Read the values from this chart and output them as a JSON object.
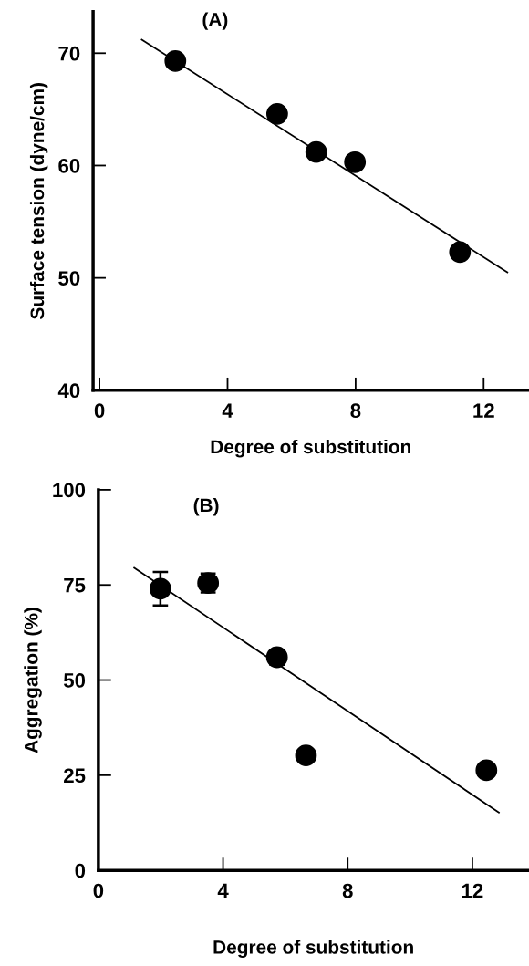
{
  "chart_data": [
    {
      "type": "scatter",
      "xlabel": "Degree of substitution",
      "ylabel": "Surface tension (dyne/cm)",
      "annotations": [
        "(A)"
      ],
      "xlim": [
        -0.2,
        13.4
      ],
      "ylim": [
        40,
        73.7
      ],
      "xticks": [
        0,
        4,
        8,
        12
      ],
      "yticks": [
        40,
        50,
        60,
        70
      ],
      "grid": false,
      "series": [
        {
          "marker": "circle",
          "color": "#000000",
          "x": [
            2.37,
            5.55,
            6.77,
            7.98,
            11.26
          ],
          "values": [
            69.3,
            64.6,
            61.2,
            60.3,
            52.3
          ]
        },
        {
          "type": "line",
          "color": "#000000",
          "marker": "none",
          "line_style": "solid",
          "x": [
            1.32,
            12.74
          ],
          "values": [
            71.2,
            50.5
          ]
        }
      ]
    },
    {
      "type": "scatter",
      "xlabel": "Degree of substitution",
      "ylabel": "Aggregation (%)",
      "annotations": [
        "(B)"
      ],
      "xlim": [
        0,
        13.8
      ],
      "ylim": [
        0,
        100
      ],
      "xticks": [
        0,
        4,
        8,
        12
      ],
      "yticks": [
        0,
        25,
        50,
        75,
        100
      ],
      "grid": false,
      "series": [
        {
          "marker": "circle",
          "color": "#000000",
          "x": [
            1.99,
            3.52,
            5.73,
            6.66,
            12.45
          ],
          "values": [
            74.0,
            75.5,
            56.0,
            30.2,
            26.3
          ],
          "errors": [
            4.4,
            2.5,
            2.0,
            1.0,
            null
          ]
        },
        {
          "type": "line",
          "color": "#000000",
          "marker": "none",
          "line_style": "solid",
          "x": [
            1.15,
            12.85
          ],
          "values": [
            79.5,
            15.2
          ]
        }
      ]
    }
  ]
}
